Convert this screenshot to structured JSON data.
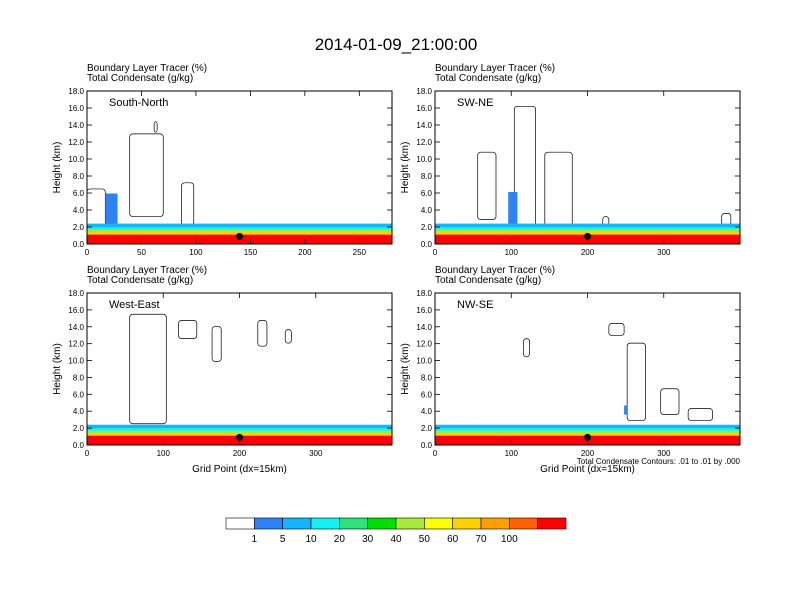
{
  "title": "2014-01-09_21:00:00",
  "colorbar": {
    "colors": [
      "#ffffff",
      "#2b83f6",
      "#14b4ff",
      "#16f0f0",
      "#2fe27a",
      "#00e000",
      "#a6ea3c",
      "#ffff00",
      "#ffd000",
      "#ffa000",
      "#ff6000",
      "#ff0000"
    ],
    "labels": [
      "1",
      "5",
      "10",
      "20",
      "30",
      "40",
      "50",
      "60",
      "70",
      "100"
    ]
  },
  "chart_data": [
    {
      "type": "contour",
      "header_line1": "Boundary Layer Tracer   (%)",
      "header_line2": "Total Condensate   (g/kg)",
      "panel_label": "South-North",
      "ylabel": "Height (km)",
      "xlabel": "",
      "xlim": [
        0,
        280
      ],
      "ylim": [
        0,
        18
      ],
      "xticks": [
        "0",
        "50",
        "100",
        "150",
        "200",
        "250"
      ],
      "yticks": [
        "0.0",
        "2.0",
        "4.0",
        "6.0",
        "8.0",
        "10.0",
        "12.0",
        "14.0",
        "16.0",
        "18.0"
      ],
      "marker_x": 140,
      "note": ""
    },
    {
      "type": "contour",
      "header_line1": "Boundary Layer Tracer   (%)",
      "header_line2": "Total Condensate   (g/kg)",
      "panel_label": "SW-NE",
      "ylabel": "Height (km)",
      "xlabel": "",
      "xlim": [
        0,
        400
      ],
      "ylim": [
        0,
        18
      ],
      "xticks": [
        "0",
        "100",
        "200",
        "300"
      ],
      "yticks": [
        "0.0",
        "2.0",
        "4.0",
        "6.0",
        "8.0",
        "10.0",
        "12.0",
        "14.0",
        "16.0",
        "18.0"
      ],
      "marker_x": 200,
      "note": ""
    },
    {
      "type": "contour",
      "header_line1": "Boundary Layer Tracer   (%)",
      "header_line2": "Total Condensate   (g/kg)",
      "panel_label": "West-East",
      "ylabel": "Height (km)",
      "xlabel": "Grid Point (dx=15km)",
      "xlim": [
        0,
        400
      ],
      "ylim": [
        0,
        18
      ],
      "xticks": [
        "0",
        "100",
        "200",
        "300"
      ],
      "yticks": [
        "0.0",
        "2.0",
        "4.0",
        "6.0",
        "8.0",
        "10.0",
        "12.0",
        "14.0",
        "16.0",
        "18.0"
      ],
      "marker_x": 200,
      "note": ""
    },
    {
      "type": "contour",
      "header_line1": "Boundary Layer Tracer   (%)",
      "header_line2": "Total Condensate   (g/kg)",
      "panel_label": "NW-SE",
      "ylabel": "Height (km)",
      "xlabel": "Grid Point (dx=15km)",
      "xlim": [
        0,
        400
      ],
      "ylim": [
        0,
        18
      ],
      "xticks": [
        "0",
        "100",
        "200",
        "300"
      ],
      "yticks": [
        "0.0",
        "2.0",
        "4.0",
        "6.0",
        "8.0",
        "10.0",
        "12.0",
        "14.0",
        "16.0",
        "18.0"
      ],
      "marker_x": 200,
      "note": "Total Condensate Contours: .01 to .01 by .000"
    }
  ]
}
